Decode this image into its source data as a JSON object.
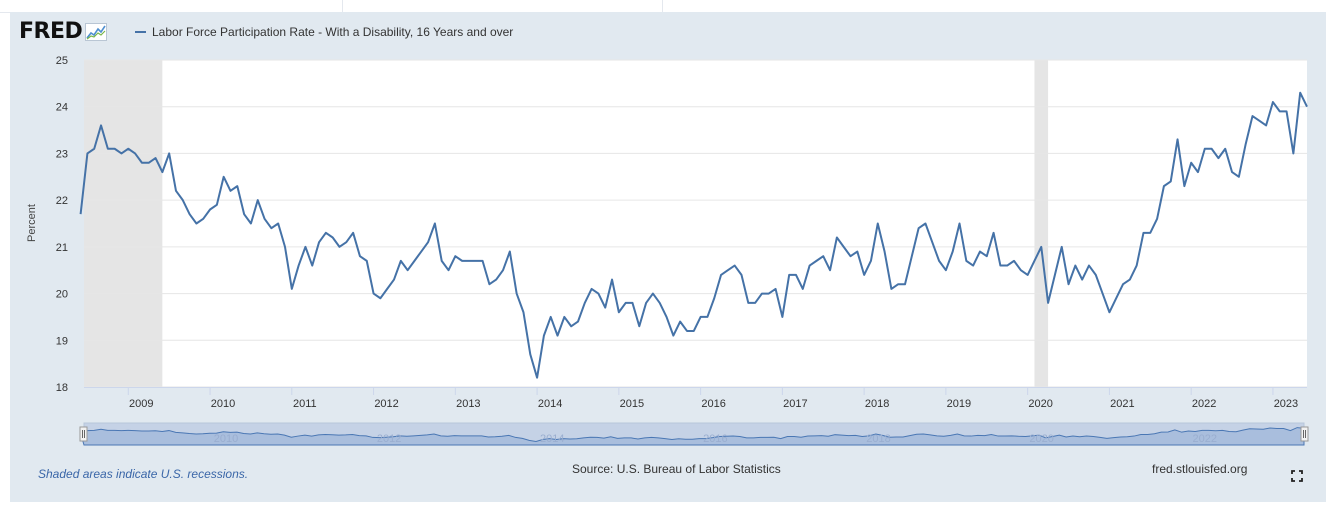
{
  "header": {
    "logo_text": "FRED",
    "legend_label": "Labor Force Participation Rate - With a Disability, 16 Years and over"
  },
  "footer": {
    "recession_note": "Shaded areas indicate U.S. recessions.",
    "source": "Source: U.S. Bureau of Labor Statistics",
    "site": "fred.stlouisfed.org"
  },
  "icons": {
    "fullscreen": "fullscreen-icon",
    "logo_graph": "line-graph-icon"
  },
  "colors": {
    "series": "#4572a7",
    "recession": "#e5e5e5",
    "frame": "#e1e9f0",
    "navigator": "#c5d2e6"
  },
  "chart_data": {
    "type": "line",
    "title": "",
    "xlabel": "",
    "ylabel": "Percent",
    "ylim": [
      18,
      25
    ],
    "yticks": [
      18,
      19,
      20,
      21,
      22,
      23,
      24,
      25
    ],
    "xlim": [
      2008.4583,
      2023.4167
    ],
    "xticks": [
      "2009",
      "2010",
      "2011",
      "2012",
      "2013",
      "2014",
      "2015",
      "2016",
      "2017",
      "2018",
      "2019",
      "2020",
      "2021",
      "2022",
      "2023"
    ],
    "grid": true,
    "recessions": [
      [
        2008.4583,
        2009.4167
      ],
      [
        2020.0833,
        2020.25
      ]
    ],
    "series": [
      {
        "name": "Labor Force Participation Rate - With a Disability, 16 Years and over",
        "frequency": "monthly",
        "start": "2008-06",
        "values": [
          21.7,
          23.0,
          23.1,
          23.6,
          23.1,
          23.1,
          23.0,
          23.1,
          23.0,
          22.8,
          22.8,
          22.9,
          22.6,
          23.0,
          22.2,
          22.0,
          21.7,
          21.5,
          21.6,
          21.8,
          21.9,
          22.5,
          22.2,
          22.3,
          21.7,
          21.5,
          22.0,
          21.6,
          21.4,
          21.5,
          21.0,
          20.1,
          20.6,
          21.0,
          20.6,
          21.1,
          21.3,
          21.2,
          21.0,
          21.1,
          21.3,
          20.8,
          20.7,
          20.0,
          19.9,
          20.1,
          20.3,
          20.7,
          20.5,
          20.7,
          20.9,
          21.1,
          21.5,
          20.7,
          20.5,
          20.8,
          20.7,
          20.7,
          20.7,
          20.7,
          20.2,
          20.3,
          20.5,
          20.9,
          20.0,
          19.6,
          18.7,
          18.2,
          19.1,
          19.5,
          19.1,
          19.5,
          19.3,
          19.4,
          19.8,
          20.1,
          20.0,
          19.7,
          20.3,
          19.6,
          19.8,
          19.8,
          19.3,
          19.8,
          20.0,
          19.8,
          19.5,
          19.1,
          19.4,
          19.2,
          19.2,
          19.5,
          19.5,
          19.9,
          20.4,
          20.5,
          20.6,
          20.4,
          19.8,
          19.8,
          20.0,
          20.0,
          20.1,
          19.5,
          20.4,
          20.4,
          20.1,
          20.6,
          20.7,
          20.8,
          20.5,
          21.2,
          21.0,
          20.8,
          20.9,
          20.4,
          20.7,
          21.5,
          20.9,
          20.1,
          20.2,
          20.2,
          20.8,
          21.4,
          21.5,
          21.1,
          20.7,
          20.5,
          20.9,
          21.5,
          20.7,
          20.6,
          20.9,
          20.8,
          21.3,
          20.6,
          20.6,
          20.7,
          20.5,
          20.4,
          20.7,
          21.0,
          19.8,
          20.4,
          21.0,
          20.2,
          20.6,
          20.3,
          20.6,
          20.4,
          20.0,
          19.6,
          19.9,
          20.2,
          20.3,
          20.6,
          21.3,
          21.3,
          21.6,
          22.3,
          22.4,
          23.3,
          22.3,
          22.8,
          22.6,
          23.1,
          23.1,
          22.9,
          23.1,
          22.6,
          22.5,
          23.2,
          23.8,
          23.7,
          23.6,
          24.1,
          23.9,
          23.9,
          23.0,
          24.3,
          24.0
        ]
      }
    ],
    "navigator_labels": [
      "2010",
      "2012",
      "2014",
      "2016",
      "2018",
      "2020",
      "2022"
    ]
  }
}
